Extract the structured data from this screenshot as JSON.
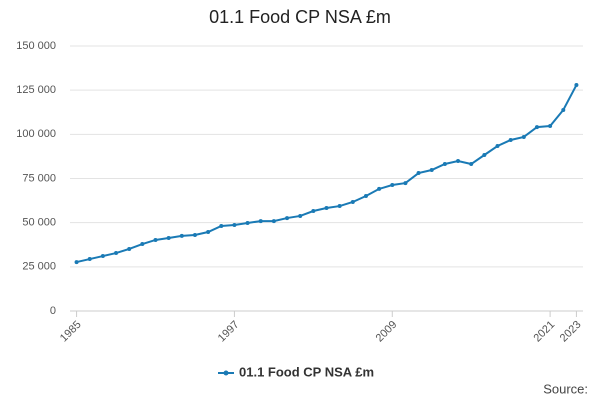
{
  "chart_data": {
    "type": "line",
    "title": "01.1 Food CP NSA £m",
    "x": [
      1985,
      1986,
      1987,
      1988,
      1989,
      1990,
      1991,
      1992,
      1993,
      1994,
      1995,
      1996,
      1997,
      1998,
      1999,
      2000,
      2001,
      2002,
      2003,
      2004,
      2005,
      2006,
      2007,
      2008,
      2009,
      2010,
      2011,
      2012,
      2013,
      2014,
      2015,
      2016,
      2017,
      2018,
      2019,
      2020,
      2021,
      2022,
      2023
    ],
    "series": [
      {
        "name": "01.1 Food CP NSA £m",
        "color": "#1a7ab5",
        "values": [
          27700,
          29400,
          31100,
          32800,
          35100,
          37900,
          40200,
          41300,
          42500,
          43000,
          44700,
          48100,
          48700,
          49800,
          50900,
          50900,
          52600,
          53800,
          56600,
          58300,
          59400,
          61700,
          65100,
          69100,
          71300,
          72400,
          78100,
          79800,
          83200,
          84900,
          83200,
          88300,
          93400,
          96800,
          98500,
          104100,
          104700,
          113800,
          127900
        ]
      }
    ],
    "xlim": [
      1984.5,
      2023.5
    ],
    "xticks": [
      1985,
      1997,
      2009,
      2021,
      2023
    ],
    "ylim": [
      0,
      150000
    ],
    "yticks": [
      0,
      {
        "value": 25000,
        "label": "25 000"
      },
      {
        "value": 50000,
        "label": "50 000"
      },
      {
        "value": 75000,
        "label": "75 000"
      },
      {
        "value": 100000,
        "label": "100 000"
      },
      {
        "value": 125000,
        "label": "125 000"
      },
      {
        "value": 150000,
        "label": "150 000"
      }
    ],
    "grid": true,
    "legend": "bottom",
    "source": "Source:"
  }
}
